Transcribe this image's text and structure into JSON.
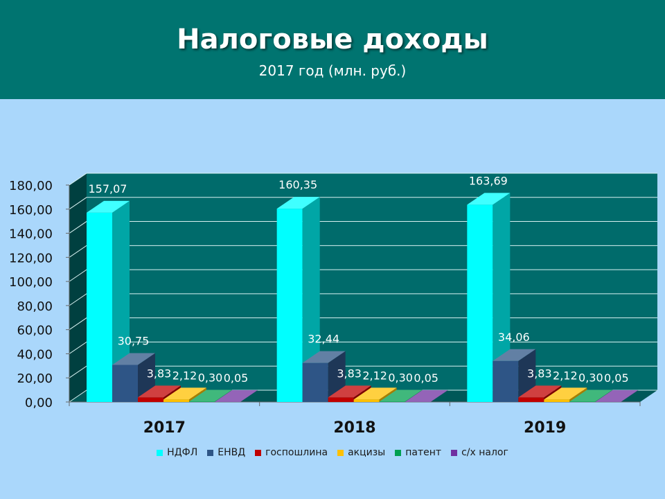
{
  "slide": {
    "title": "Налоговые доходы",
    "subtitle": "2017 год (млн. руб.)"
  },
  "chart_data": {
    "type": "bar",
    "title": "",
    "xlabel": "",
    "ylabel": "",
    "ylim": [
      0,
      180
    ],
    "yticks": [
      "0,00",
      "20,00",
      "40,00",
      "60,00",
      "80,00",
      "100,00",
      "120,00",
      "140,00",
      "160,00",
      "180,00"
    ],
    "categories": [
      "2017",
      "2018",
      "2019"
    ],
    "grid": true,
    "legend_position": "bottom",
    "series": [
      {
        "name": "НДФЛ",
        "color": "#00ffff",
        "values": [
          157.07,
          160.35,
          163.69
        ],
        "labels": [
          "157,07",
          "160,35",
          "163,69"
        ]
      },
      {
        "name": "ЕНВД",
        "color": "#2e5586",
        "values": [
          30.75,
          32.44,
          34.06
        ],
        "labels": [
          "30,75",
          "32,44",
          "34,06"
        ]
      },
      {
        "name": "госпошлина",
        "color": "#c00000",
        "values": [
          3.83,
          3.83,
          3.83
        ],
        "labels": [
          "3,83",
          "3,83",
          "3,83"
        ]
      },
      {
        "name": "акцизы",
        "color": "#ffc000",
        "values": [
          2.12,
          2.12,
          2.12
        ],
        "labels": [
          "2,12",
          "2,12",
          "2,12"
        ]
      },
      {
        "name": "патент",
        "color": "#00a050",
        "values": [
          0.3,
          0.3,
          0.3
        ],
        "labels": [
          "0,30",
          "0,30",
          "0,30"
        ]
      },
      {
        "name": "с/х налог",
        "color": "#7030a0",
        "values": [
          0.05,
          0.05,
          0.05
        ],
        "labels": [
          "0,05",
          "0,05",
          "0,05"
        ]
      }
    ]
  }
}
